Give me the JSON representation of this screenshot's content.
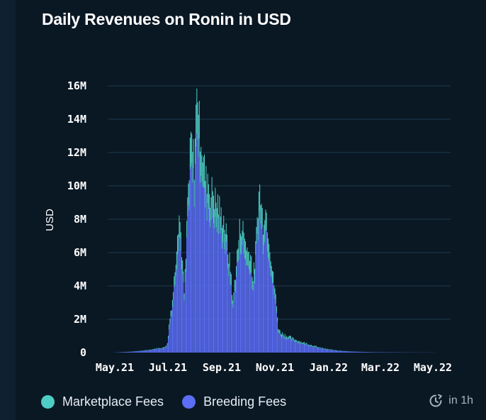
{
  "colors": {
    "marketplace": "#4ecdc4",
    "breeding": "#5b6ef5",
    "grid": "#1d3a4a",
    "text": "#ffffff"
  },
  "footer": {
    "refresh_label": "in 1h",
    "icon": "refresh-clock-icon"
  },
  "chart_data": {
    "type": "bar",
    "stacked": true,
    "title": "Daily Revenues on Ronin in USD",
    "xlabel": "",
    "ylabel": "USD",
    "ylim": [
      0,
      16000000
    ],
    "yticks": [
      0,
      2000000,
      4000000,
      6000000,
      8000000,
      10000000,
      12000000,
      14000000,
      16000000
    ],
    "ytick_labels": [
      "0",
      "2M",
      "4M",
      "6M",
      "8M",
      "10M",
      "12M",
      "14M",
      "16M"
    ],
    "xtick_labels": [
      "May.21",
      "Jul.21",
      "Sep.21",
      "Nov.21",
      "Jan.22",
      "Mar.22",
      "May.22"
    ],
    "x_range_days": [
      0,
      384
    ],
    "grid": true,
    "legend_position": "bottom-left",
    "series_names": [
      "Marketplace Fees",
      "Breeding Fees"
    ],
    "daily_total_shape_points": [
      [
        0,
        5000
      ],
      [
        10,
        30000
      ],
      [
        20,
        60000
      ],
      [
        30,
        100000
      ],
      [
        40,
        150000
      ],
      [
        50,
        250000
      ],
      [
        60,
        320000
      ],
      [
        64,
        550000
      ],
      [
        66,
        1700000
      ],
      [
        68,
        2600000
      ],
      [
        70,
        3300000
      ],
      [
        72,
        4500000
      ],
      [
        74,
        6000000
      ],
      [
        76,
        7800000
      ],
      [
        78,
        8600000
      ],
      [
        80,
        7400000
      ],
      [
        82,
        5500000
      ],
      [
        84,
        3700000
      ],
      [
        86,
        5800000
      ],
      [
        88,
        9500000
      ],
      [
        90,
        10800000
      ],
      [
        92,
        13200000
      ],
      [
        94,
        12400000
      ],
      [
        96,
        11900000
      ],
      [
        98,
        14800000
      ],
      [
        100,
        16600000
      ],
      [
        102,
        14100000
      ],
      [
        104,
        13700000
      ],
      [
        106,
        12300000
      ],
      [
        108,
        11400000
      ],
      [
        110,
        10600000
      ],
      [
        112,
        11100000
      ],
      [
        114,
        10200000
      ],
      [
        116,
        9700000
      ],
      [
        118,
        10200000
      ],
      [
        120,
        9700000
      ],
      [
        122,
        9200000
      ],
      [
        124,
        9300000
      ],
      [
        126,
        8900000
      ],
      [
        128,
        8400000
      ],
      [
        130,
        8600000
      ],
      [
        132,
        8000000
      ],
      [
        134,
        7300000
      ],
      [
        136,
        6400000
      ],
      [
        138,
        5600000
      ],
      [
        140,
        4800000
      ],
      [
        142,
        3000000
      ],
      [
        144,
        4400000
      ],
      [
        146,
        5500000
      ],
      [
        148,
        6500000
      ],
      [
        150,
        7600000
      ],
      [
        152,
        8000000
      ],
      [
        154,
        7600000
      ],
      [
        156,
        7100000
      ],
      [
        158,
        6700000
      ],
      [
        160,
        6100000
      ],
      [
        162,
        6400000
      ],
      [
        164,
        5800000
      ],
      [
        166,
        4500000
      ],
      [
        168,
        5600000
      ],
      [
        170,
        7200000
      ],
      [
        172,
        9300000
      ],
      [
        174,
        10100000
      ],
      [
        176,
        9000000
      ],
      [
        178,
        8200000
      ],
      [
        180,
        9100000
      ],
      [
        182,
        8600000
      ],
      [
        184,
        7800000
      ],
      [
        186,
        6800000
      ],
      [
        188,
        5600000
      ],
      [
        190,
        4600000
      ],
      [
        192,
        4000000
      ],
      [
        194,
        2800000
      ],
      [
        196,
        1600000
      ],
      [
        198,
        1300000
      ],
      [
        202,
        1150000
      ],
      [
        206,
        1050000
      ],
      [
        210,
        950000
      ],
      [
        214,
        850000
      ],
      [
        218,
        780000
      ],
      [
        222,
        700000
      ],
      [
        226,
        620000
      ],
      [
        230,
        560000
      ],
      [
        234,
        500000
      ],
      [
        238,
        430000
      ],
      [
        242,
        360000
      ],
      [
        246,
        300000
      ],
      [
        250,
        260000
      ],
      [
        254,
        220000
      ],
      [
        258,
        190000
      ],
      [
        262,
        160000
      ],
      [
        270,
        120000
      ],
      [
        280,
        80000
      ],
      [
        290,
        55000
      ],
      [
        300,
        40000
      ],
      [
        310,
        25000
      ],
      [
        330,
        18000
      ],
      [
        350,
        12000
      ],
      [
        384,
        5000
      ]
    ],
    "breeding_share_approx": 0.85,
    "notes": "Stacked daily bars; Breeding Fees (blue) bottom, Marketplace Fees (teal) top. Values estimated from gridlines."
  }
}
